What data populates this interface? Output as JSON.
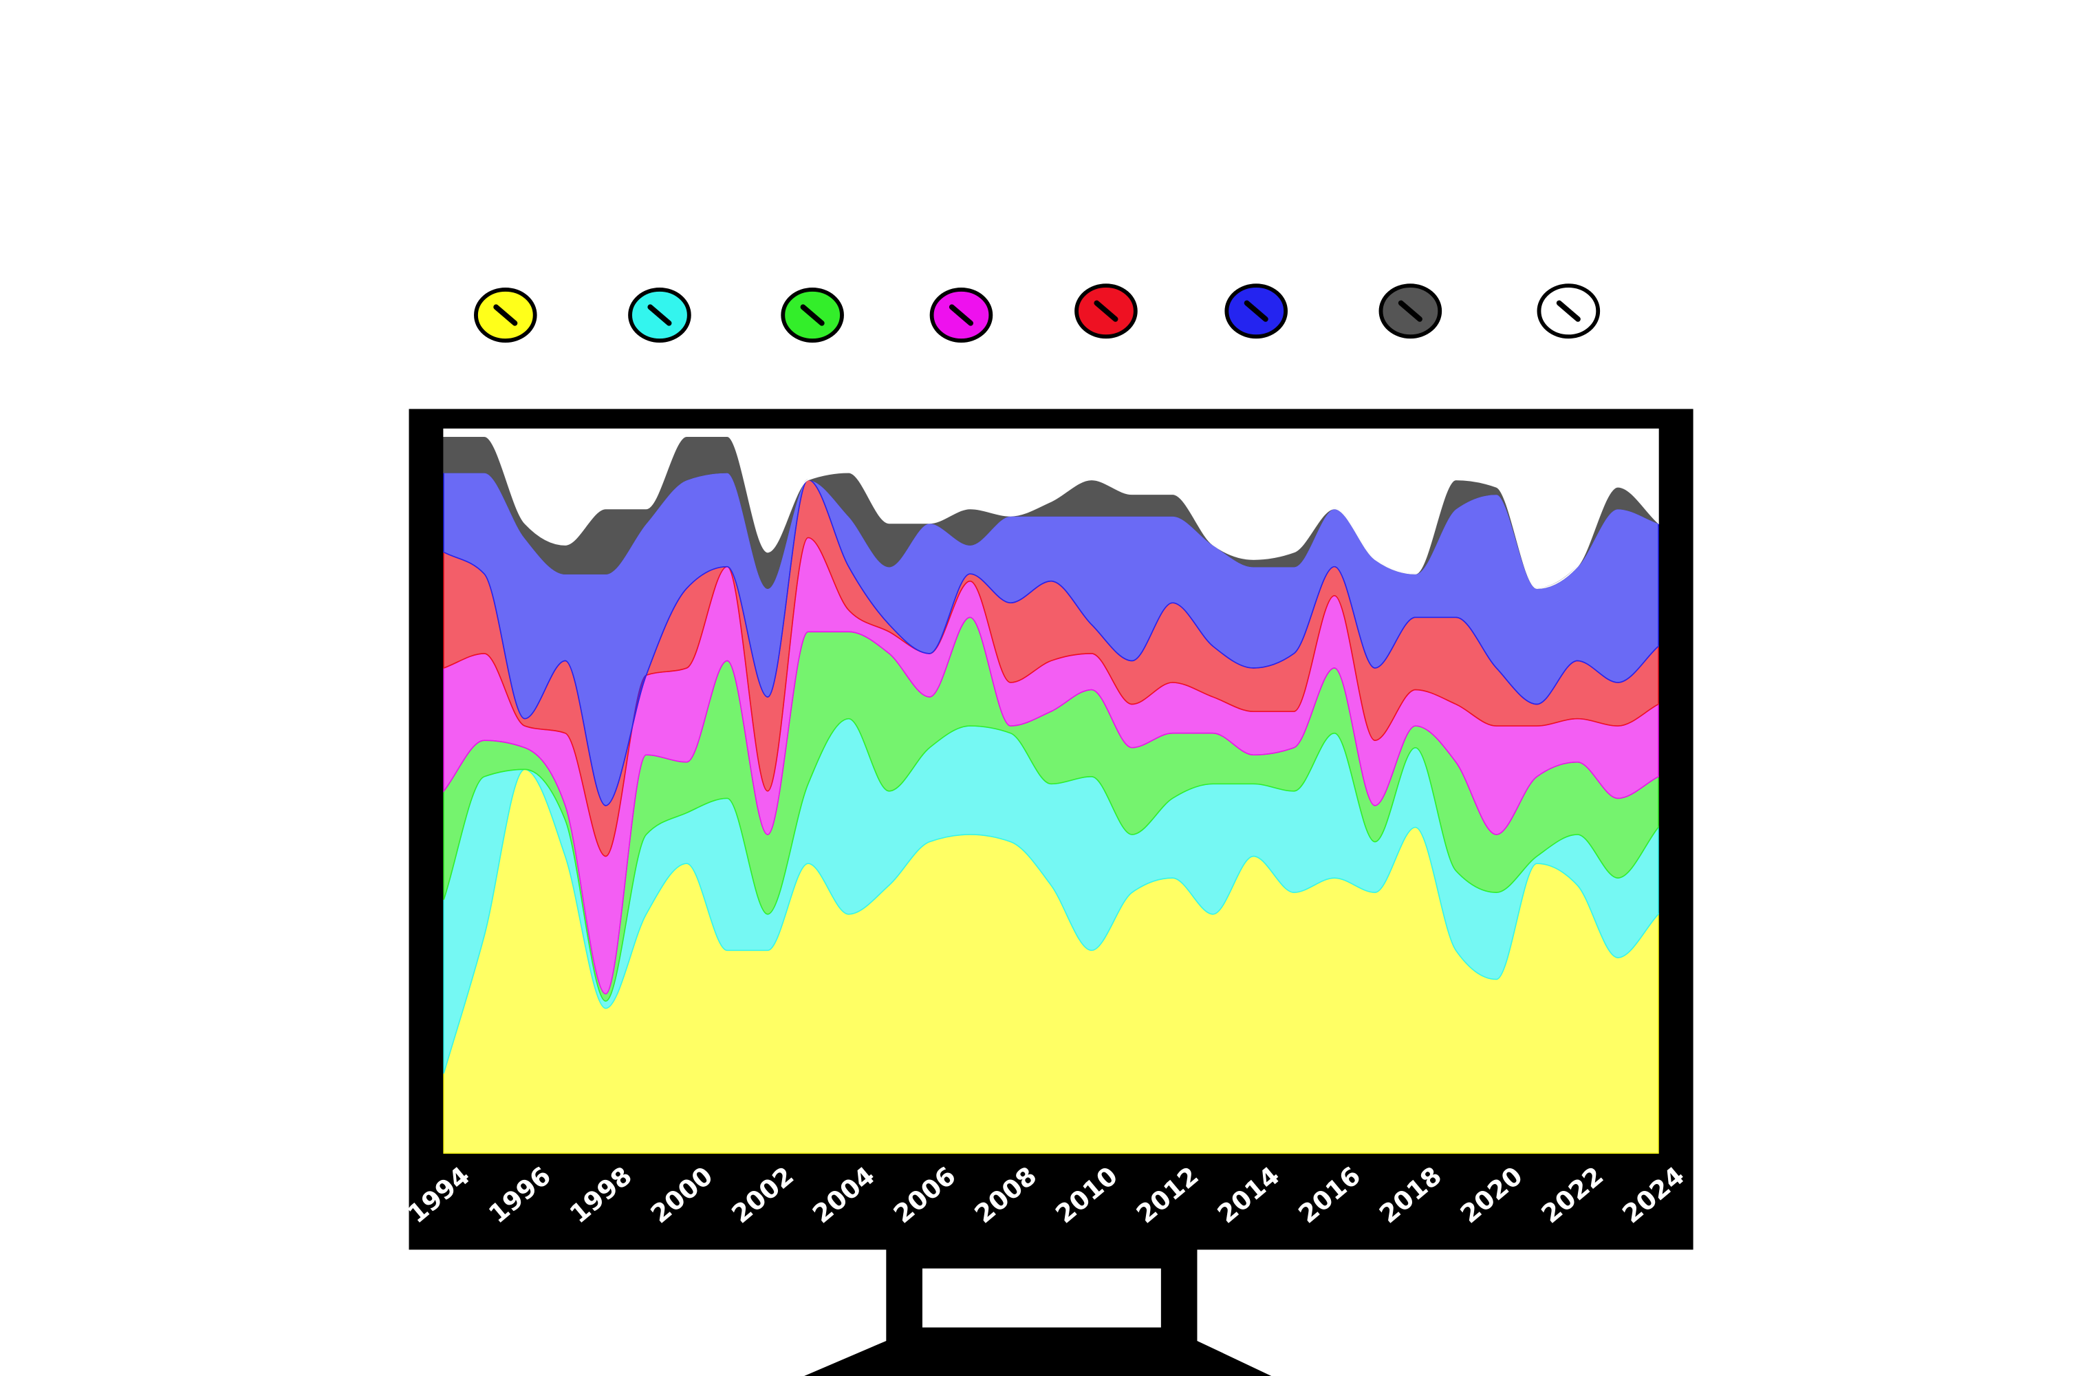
{
  "chart_data": {
    "type": "stacked-area",
    "x": [
      1994,
      1995,
      1996,
      1997,
      1998,
      1999,
      2000,
      2001,
      2002,
      2003,
      2004,
      2005,
      2006,
      2007,
      2008,
      2009,
      2010,
      2011,
      2012,
      2013,
      2014,
      2015,
      2016,
      2017,
      2018,
      2019,
      2020,
      2021,
      2022,
      2023,
      2024
    ],
    "xlim": [
      1994,
      2024
    ],
    "xticks": [
      1994,
      1996,
      1998,
      2000,
      2002,
      2004,
      2006,
      2008,
      2010,
      2012,
      2014,
      2016,
      2018,
      2020,
      2022,
      2024
    ],
    "ylim": [
      0,
      100
    ],
    "series": [
      {
        "color": "#ffff1a",
        "values": [
          11,
          30,
          53,
          41,
          20,
          33,
          40,
          28,
          28,
          40,
          33,
          37,
          43,
          44,
          43,
          37,
          28,
          36,
          38,
          33,
          41,
          36,
          38,
          36,
          45,
          28,
          24,
          40,
          37,
          27,
          33
        ]
      },
      {
        "color": "#33f5ee",
        "values": [
          24,
          22,
          0,
          5,
          1,
          11,
          7,
          21,
          5,
          11,
          27,
          13,
          13,
          15,
          15,
          14,
          24,
          8,
          11,
          18,
          10,
          14,
          20,
          7,
          11,
          11,
          12,
          1,
          7,
          11,
          12
        ]
      },
      {
        "color": "#33ee2a",
        "values": [
          15,
          5,
          3,
          2,
          1,
          11,
          7,
          19,
          11,
          21,
          12,
          19,
          7,
          15,
          1,
          10,
          12,
          12,
          9,
          7,
          4,
          6,
          9,
          5,
          3,
          15,
          8,
          11,
          10,
          11,
          7
        ]
      },
      {
        "color": "#ee11ee",
        "values": [
          17,
          12,
          3,
          10,
          19,
          11,
          13,
          13,
          6,
          13,
          3,
          3,
          6,
          5,
          6,
          7,
          5,
          6,
          7,
          5,
          6,
          5,
          10,
          9,
          5,
          8,
          15,
          7,
          6,
          10,
          10
        ]
      },
      {
        "color": "#ee1122",
        "values": [
          16,
          11,
          1,
          10,
          7,
          0,
          11,
          0,
          13,
          8,
          6,
          1,
          0,
          1,
          11,
          11,
          4,
          6,
          11,
          7,
          6,
          8,
          4,
          10,
          10,
          12,
          8,
          3,
          8,
          6,
          8
        ]
      },
      {
        "color": "#2424f0",
        "values": [
          11,
          14,
          25,
          12,
          32,
          21,
          15,
          13,
          15,
          0,
          7,
          8,
          18,
          4,
          12,
          9,
          15,
          20,
          12,
          14,
          14,
          12,
          8,
          15,
          6,
          15,
          24,
          16,
          13,
          24,
          17
        ]
      },
      {
        "color": "#555555",
        "values": [
          5,
          5,
          2,
          4,
          9,
          2,
          6,
          5,
          5,
          0,
          6,
          6,
          0,
          5,
          0,
          2,
          5,
          3,
          3,
          0,
          1,
          2,
          0,
          0,
          0,
          4,
          1,
          0,
          0,
          3,
          0
        ]
      },
      {
        "color": "#ffffff",
        "values": [
          1,
          1,
          13,
          16,
          11,
          11,
          1,
          1,
          17,
          7,
          6,
          13,
          13,
          11,
          12,
          10,
          7,
          9,
          9,
          16,
          18,
          17,
          11,
          18,
          20,
          7,
          8,
          22,
          19,
          8,
          13
        ]
      }
    ]
  }
}
